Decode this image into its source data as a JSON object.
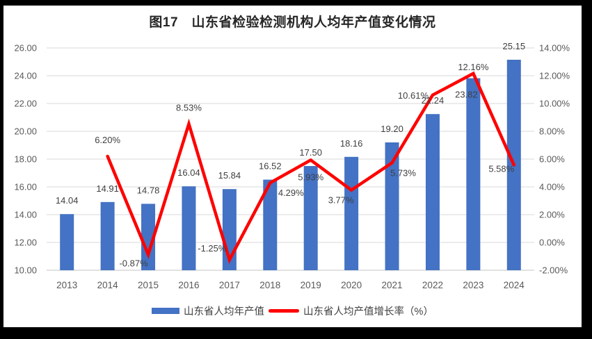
{
  "title": "图17　山东省检验检测机构人均年产值变化情况",
  "legend": {
    "items": [
      {
        "label": "山东省人均年产值",
        "swatch": "bar-swatch"
      },
      {
        "label": "山东省人均产值增长率（%）",
        "swatch": "line-swatch"
      }
    ]
  },
  "colors": {
    "bar": "#4472C4",
    "line": "#FF0000",
    "grid": "#D9D9D9",
    "axis_line": "#C6C6C6",
    "axis_text": "#595959",
    "data_label": "#404040",
    "title_text": "#262626",
    "legend_text": "#404040",
    "frame": "#000000",
    "canvas": "#FFFFFF"
  },
  "chart_data": {
    "type": "bar",
    "title": "图17　山东省检验检测机构人均年产值变化情况",
    "categories": [
      "2013",
      "2014",
      "2015",
      "2016",
      "2017",
      "2018",
      "2019",
      "2020",
      "2021",
      "2022",
      "2023",
      "2024"
    ],
    "series": [
      {
        "name": "山东省人均年产值",
        "chart": "bar",
        "axis": "left",
        "values": [
          14.04,
          14.91,
          14.78,
          16.04,
          15.84,
          16.52,
          17.5,
          18.16,
          19.2,
          21.24,
          23.82,
          25.15
        ]
      },
      {
        "name": "山东省人均产值增长率（%）",
        "chart": "line",
        "axis": "right",
        "values": [
          null,
          6.2,
          -0.87,
          8.53,
          -1.25,
          4.29,
          5.93,
          3.77,
          5.73,
          10.61,
          12.16,
          5.58
        ]
      }
    ],
    "left_axis": {
      "min": 10,
      "max": 26,
      "step": 2,
      "format": "0.00",
      "tick_labels": [
        "10.00",
        "12.00",
        "14.00",
        "16.00",
        "18.00",
        "20.00",
        "22.00",
        "24.00",
        "26.00"
      ]
    },
    "right_axis": {
      "min": -2,
      "max": 14,
      "step": 2,
      "format": "0.00%",
      "tick_labels": [
        "-2.00%",
        "0.00%",
        "2.00%",
        "4.00%",
        "6.00%",
        "8.00%",
        "10.00%",
        "12.00%",
        "14.00%"
      ]
    },
    "grid": true,
    "legend_position": "bottom"
  }
}
